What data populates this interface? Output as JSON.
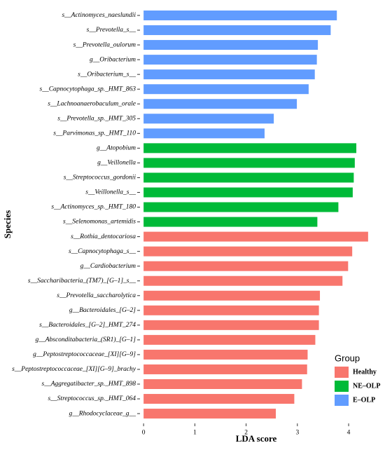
{
  "chart_data": {
    "type": "bar",
    "orientation": "horizontal",
    "x_label": "LDA score",
    "y_label": "Species",
    "categories": [
      "s__Actinomyces_naeslundii",
      "s__Prevotella_s__",
      "s__Prevotella_oulorum",
      "g__Oribacterium",
      "s__Oribacterium_s__",
      "s__Capnocytophaga_sp._HMT_863",
      "s__Lachnoanaerobaculum_orale",
      "s__Prevotella_sp._HMT_305",
      "s__Parvimonas_sp._HMT_110",
      "g__Atopobium",
      "g__Veillonella",
      "s__Streptococcus_gordonii",
      "s__Veillonella_s__",
      "s__Actinomyces_sp._HMT_180",
      "s__Selenomonas_artemidis",
      "s__Rothia_dentocariosa",
      "s__Capnocytophaga_s__",
      "g__Cardiobacterium",
      "s__Saccharibacteria_(TM7)_[G–1]_s__",
      "s__Prevotella_saccharolytica",
      "g__Bacteroidales_[G–2]",
      "s__Bacteroidales_[G–2]_HMT_274",
      "g__Absconditabacteria_(SR1)_[G–1]",
      "g__Peptostreptococcaceae_[XI][G–9]",
      "s__Peptostreptococcaceae_[XI][G–9]_brachy",
      "s__Aggregatibacter_sp._HMT_898",
      "s__Streptococcus_sp._HMT_064",
      "g__Rhodocyclaceae_g__"
    ],
    "series": [
      {
        "name": "Healthy",
        "color": "#F8766D",
        "values": [
          null,
          null,
          null,
          null,
          null,
          null,
          null,
          null,
          null,
          null,
          null,
          null,
          null,
          null,
          null,
          4.38,
          4.07,
          3.99,
          3.88,
          3.44,
          3.42,
          3.42,
          3.35,
          3.2,
          3.19,
          3.09,
          2.94,
          2.58
        ]
      },
      {
        "name": "NE–OLP",
        "color": "#00BA38",
        "values": [
          null,
          null,
          null,
          null,
          null,
          null,
          null,
          null,
          null,
          4.15,
          4.12,
          4.1,
          4.08,
          3.8,
          3.39,
          null,
          null,
          null,
          null,
          null,
          null,
          null,
          null,
          null,
          null,
          null,
          null,
          null
        ]
      },
      {
        "name": "E–OLP",
        "color": "#619CFF",
        "values": [
          3.77,
          3.65,
          3.4,
          3.38,
          3.34,
          3.22,
          2.99,
          2.54,
          2.36,
          null,
          null,
          null,
          null,
          null,
          null,
          null,
          null,
          null,
          null,
          null,
          null,
          null,
          null,
          null,
          null,
          null,
          null,
          null
        ]
      }
    ],
    "legend_title": "Group",
    "legend_position": "bottom-right",
    "xlim": [
      -0.07,
      4.45
    ],
    "xticks": [
      0,
      1,
      2,
      3,
      4
    ]
  }
}
